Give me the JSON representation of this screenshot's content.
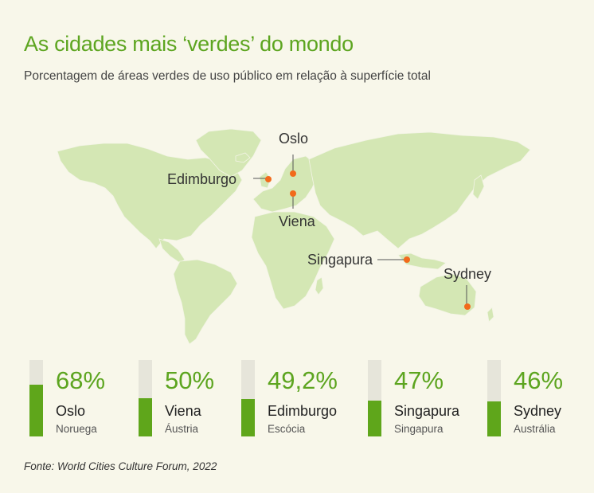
{
  "title": "As cidades mais ‘verdes’ do mondo",
  "subtitle": "Porcentagem de áreas verdes de uso público em relação à superfície total",
  "source": "Fonte: World Cities Culture Forum, 2022",
  "colors": {
    "accent": "#5da520",
    "bar_fill": "#5fa61b",
    "bar_track": "#e6e5da",
    "land": "#d4e7b4",
    "marker": "#f26a1b",
    "background": "#f8f7ea"
  },
  "chart_data": {
    "type": "bar",
    "categories": [
      "Oslo",
      "Viena",
      "Edimburgo",
      "Singapura",
      "Sydney"
    ],
    "countries": [
      "Noruega",
      "Áustria",
      "Escócia",
      "Singapura",
      "Austrália"
    ],
    "values": [
      68,
      50,
      49.2,
      47,
      46
    ],
    "value_labels": [
      "68%",
      "50%",
      "49,2%",
      "47%",
      "46%"
    ],
    "ylim": [
      0,
      100
    ],
    "title": "As cidades mais ‘verdes’ do mondo",
    "xlabel": "",
    "ylabel": ""
  }
}
